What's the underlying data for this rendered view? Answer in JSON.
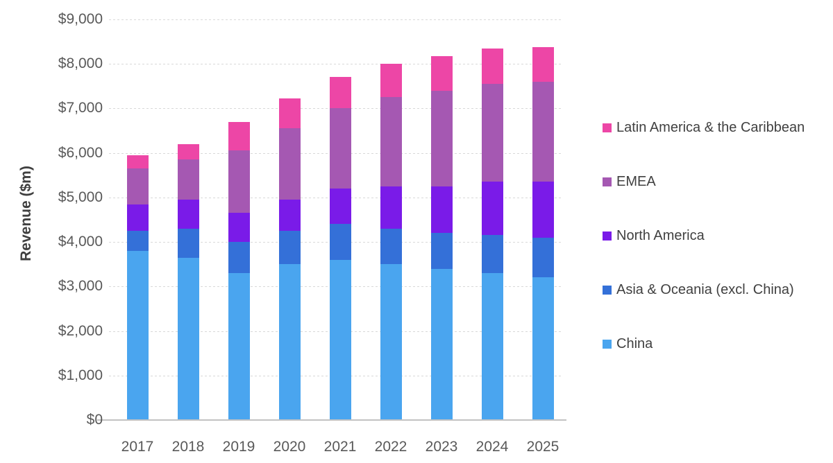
{
  "chart_data": {
    "type": "bar",
    "stacked": true,
    "title": "",
    "xlabel": "",
    "ylabel": "Revenue ($m)",
    "ylim": [
      0,
      9000
    ],
    "ytick_step": 1000,
    "ytick_labels": [
      "$0",
      "$1,000",
      "$2,000",
      "$3,000",
      "$4,000",
      "$5,000",
      "$6,000",
      "$7,000",
      "$8,000",
      "$9,000"
    ],
    "categories": [
      "2017",
      "2018",
      "2019",
      "2020",
      "2021",
      "2022",
      "2023",
      "2024",
      "2025"
    ],
    "series": [
      {
        "name": "China",
        "color": "#4AA5EF",
        "values": [
          3800,
          3650,
          3300,
          3500,
          3600,
          3500,
          3400,
          3300,
          3200
        ]
      },
      {
        "name": "Asia & Oceania (excl. China)",
        "color": "#3470D8",
        "values": [
          450,
          650,
          700,
          750,
          800,
          800,
          800,
          850,
          900
        ]
      },
      {
        "name": "North America",
        "color": "#7A1BE8",
        "values": [
          600,
          650,
          650,
          700,
          800,
          950,
          1050,
          1200,
          1250
        ]
      },
      {
        "name": "EMEA",
        "color": "#A558B2",
        "values": [
          800,
          900,
          1400,
          1600,
          1800,
          2000,
          2150,
          2200,
          2250
        ]
      },
      {
        "name": "Latin America & the Caribbean",
        "color": "#ED46A6",
        "values": [
          300,
          350,
          650,
          675,
          700,
          750,
          775,
          800,
          775
        ]
      }
    ],
    "approx_totals": [
      5950,
      6200,
      6700,
      7225,
      7700,
      8000,
      8175,
      8350,
      8375
    ],
    "legend_position": "right",
    "legend_order_top_to_bottom": [
      "Latin America & the Caribbean",
      "EMEA",
      "North America",
      "Asia & Oceania (excl. China)",
      "China"
    ],
    "grid": "horizontal-dashed",
    "grid_color": "#d8d8d8",
    "axis_line_color": "#c2c2c2",
    "tick_label_color": "#595959",
    "legend_text_color": "#404040"
  }
}
